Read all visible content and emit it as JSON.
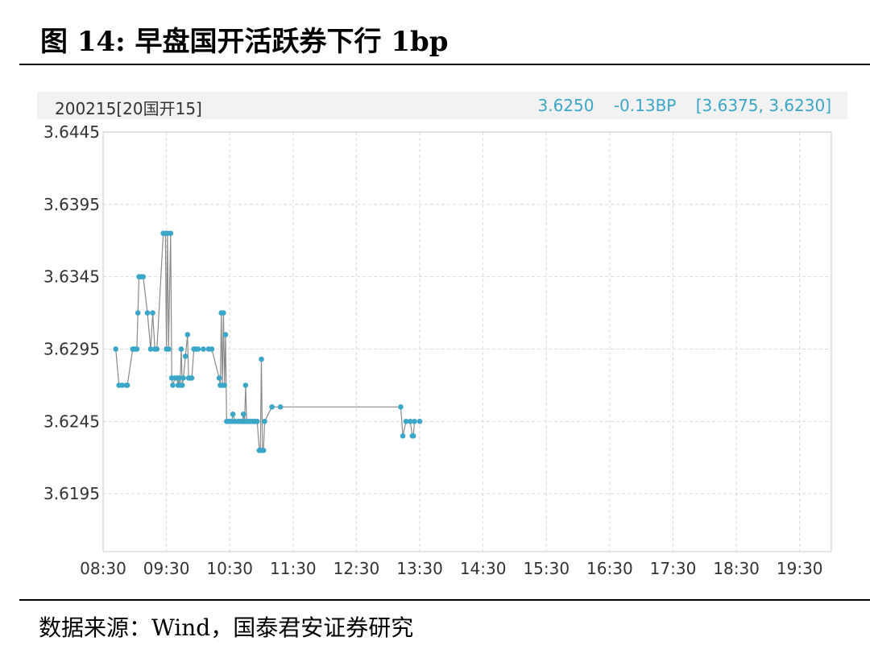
{
  "figure": {
    "title": "图 14: 早盘国开活跃券下行 1bp",
    "source": "数据来源：Wind，国泰君安证券研究"
  },
  "header": {
    "bond": "200215[20国开15]",
    "last": "3.6250",
    "change": "-0.13BP",
    "range": "[3.6375, 3.6230]"
  },
  "colors": {
    "accent": "#3aa6c8",
    "line": "#8a8a8a",
    "grid": "#d9d9d9"
  },
  "chart_data": {
    "type": "line",
    "title": "",
    "xlabel": "",
    "ylabel": "",
    "x_ticks": [
      "08:30",
      "09:30",
      "10:30",
      "11:30",
      "12:30",
      "13:30",
      "14:30",
      "15:30",
      "16:30",
      "17:30",
      "18:30",
      "19:30"
    ],
    "y_ticks": [
      "3.6445",
      "3.6395",
      "3.6345",
      "3.6295",
      "3.6245",
      "3.6195"
    ],
    "xlim": [
      "08:30",
      "20:00"
    ],
    "ylim": [
      3.6155,
      3.6445
    ],
    "grid": true,
    "legend": "none",
    "series": [
      {
        "points": [
          [
            "08:42",
            3.6295
          ],
          [
            "08:45",
            3.627
          ],
          [
            "08:48",
            3.627
          ],
          [
            "08:52",
            3.627
          ],
          [
            "08:53",
            3.627
          ],
          [
            "08:58",
            3.6295
          ],
          [
            "09:00",
            3.6295
          ],
          [
            "09:02",
            3.6295
          ],
          [
            "09:03",
            3.632
          ],
          [
            "09:04",
            3.6345
          ],
          [
            "09:06",
            3.6345
          ],
          [
            "09:08",
            3.6345
          ],
          [
            "09:12",
            3.632
          ],
          [
            "09:15",
            3.6295
          ],
          [
            "09:17",
            3.632
          ],
          [
            "09:19",
            3.6295
          ],
          [
            "09:21",
            3.6295
          ],
          [
            "09:27",
            3.6375
          ],
          [
            "09:29",
            3.6375
          ],
          [
            "09:30",
            3.6295
          ],
          [
            "09:31",
            3.6375
          ],
          [
            "09:32",
            3.6295
          ],
          [
            "09:34",
            3.6375
          ],
          [
            "09:35",
            3.6275
          ],
          [
            "09:36",
            3.627
          ],
          [
            "09:38",
            3.6275
          ],
          [
            "09:40",
            3.6275
          ],
          [
            "09:41",
            3.627
          ],
          [
            "09:42",
            3.6275
          ],
          [
            "09:43",
            3.627
          ],
          [
            "09:44",
            3.6295
          ],
          [
            "09:45",
            3.627
          ],
          [
            "09:46",
            3.6275
          ],
          [
            "09:48",
            3.629
          ],
          [
            "09:50",
            3.6305
          ],
          [
            "09:51",
            3.6275
          ],
          [
            "09:52",
            3.6275
          ],
          [
            "09:54",
            3.6275
          ],
          [
            "09:56",
            3.6295
          ],
          [
            "09:58",
            3.6295
          ],
          [
            "10:00",
            3.6295
          ],
          [
            "10:05",
            3.6295
          ],
          [
            "10:10",
            3.6295
          ],
          [
            "10:13",
            3.6295
          ],
          [
            "10:20",
            3.6275
          ],
          [
            "10:21",
            3.627
          ],
          [
            "10:22",
            3.632
          ],
          [
            "10:23",
            3.627
          ],
          [
            "10:24",
            3.632
          ],
          [
            "10:25",
            3.627
          ],
          [
            "10:26",
            3.6305
          ],
          [
            "10:27",
            3.6245
          ],
          [
            "10:28",
            3.6245
          ],
          [
            "10:30",
            3.6245
          ],
          [
            "10:32",
            3.6245
          ],
          [
            "10:33",
            3.625
          ],
          [
            "10:35",
            3.6245
          ],
          [
            "10:38",
            3.6245
          ],
          [
            "10:40",
            3.6245
          ],
          [
            "10:42",
            3.6245
          ],
          [
            "10:43",
            3.625
          ],
          [
            "10:44",
            3.6245
          ],
          [
            "10:45",
            3.627
          ],
          [
            "10:46",
            3.6245
          ],
          [
            "10:48",
            3.6245
          ],
          [
            "10:50",
            3.6245
          ],
          [
            "10:52",
            3.6245
          ],
          [
            "10:54",
            3.6245
          ],
          [
            "10:56",
            3.6245
          ],
          [
            "10:58",
            3.6225
          ],
          [
            "10:59",
            3.6225
          ],
          [
            "11:00",
            3.6288
          ],
          [
            "11:01",
            3.6225
          ],
          [
            "11:02",
            3.6225
          ],
          [
            "11:03",
            3.6245
          ],
          [
            "11:10",
            3.6255
          ],
          [
            "11:18",
            3.6255
          ],
          [
            "13:12",
            3.6255
          ],
          [
            "13:14",
            3.6235
          ],
          [
            "13:17",
            3.6245
          ],
          [
            "13:21",
            3.6245
          ],
          [
            "13:23",
            3.6235
          ],
          [
            "13:24",
            3.6235
          ],
          [
            "13:25",
            3.6245
          ],
          [
            "13:30",
            3.6245
          ]
        ]
      }
    ]
  }
}
